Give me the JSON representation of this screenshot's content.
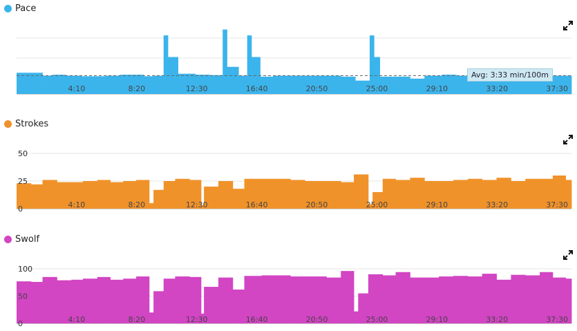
{
  "xticks": [
    "4:10",
    "8:20",
    "12:30",
    "16:40",
    "20:50",
    "25:00",
    "29:10",
    "33:20",
    "37:30"
  ],
  "xmax": 38.5,
  "panels": {
    "pace": {
      "label": "Pace",
      "color": "#3bb4ec",
      "avg_label": "Avg: 3:33 min/100m"
    },
    "strokes": {
      "label": "Strokes",
      "color": "#f0922a",
      "yticks": [
        "0",
        "25",
        "50"
      ]
    },
    "swolf": {
      "label": "Swolf",
      "color": "#d245c3",
      "yticks": [
        "0",
        "50",
        "100"
      ]
    }
  },
  "chart_data": [
    {
      "type": "area",
      "title": "Pace",
      "unit": "min/100m",
      "x_unit": "elapsed time (min:sec)",
      "avg": "3:33",
      "inverted_axis": true,
      "segments": [
        [
          0,
          1.8,
          3.4
        ],
        [
          1.8,
          2.5,
          3.55
        ],
        [
          2.5,
          3.4,
          3.5
        ],
        [
          3.4,
          4.5,
          3.55
        ],
        [
          4.5,
          6.2,
          3.58
        ],
        [
          6.2,
          7.2,
          3.55
        ],
        [
          7.2,
          8.8,
          3.5
        ],
        [
          8.8,
          9.5,
          3.58
        ],
        [
          9.5,
          10.2,
          3.55
        ],
        [
          10.2,
          10.5,
          1.5
        ],
        [
          10.5,
          11.2,
          2.6
        ],
        [
          11.2,
          12.4,
          3.45
        ],
        [
          12.4,
          13.4,
          3.5
        ],
        [
          13.4,
          14.3,
          3.52
        ],
        [
          14.3,
          14.6,
          1.2
        ],
        [
          14.6,
          15.4,
          3.1
        ],
        [
          15.4,
          16.0,
          3.55
        ],
        [
          16.0,
          16.3,
          1.5
        ],
        [
          16.3,
          16.9,
          2.6
        ],
        [
          16.9,
          17.8,
          3.6
        ],
        [
          17.8,
          19.0,
          3.55
        ],
        [
          19.0,
          20.5,
          3.55
        ],
        [
          20.5,
          22.5,
          3.55
        ],
        [
          22.5,
          23.5,
          3.6
        ],
        [
          23.5,
          24.5,
          3.8
        ],
        [
          24.5,
          24.8,
          1.5
        ],
        [
          24.8,
          25.2,
          2.6
        ],
        [
          25.2,
          26.3,
          3.6
        ],
        [
          26.3,
          27.3,
          3.6
        ],
        [
          27.3,
          28.3,
          3.7
        ],
        [
          28.3,
          29.5,
          3.55
        ],
        [
          29.5,
          30.5,
          3.5
        ],
        [
          30.5,
          32.0,
          3.55
        ],
        [
          32.0,
          34.0,
          3.55
        ],
        [
          34.0,
          34.8,
          3.5
        ],
        [
          34.8,
          35.5,
          3.3
        ],
        [
          35.5,
          37.0,
          3.5
        ],
        [
          37.0,
          38.5,
          3.55
        ]
      ]
    },
    {
      "type": "bar",
      "title": "Strokes",
      "ylim": [
        0,
        50
      ],
      "segments": [
        [
          0,
          1.0,
          23
        ],
        [
          1.0,
          1.8,
          22
        ],
        [
          1.8,
          2.8,
          26
        ],
        [
          2.8,
          3.8,
          24
        ],
        [
          3.8,
          4.6,
          24
        ],
        [
          4.6,
          5.6,
          25
        ],
        [
          5.6,
          6.5,
          26
        ],
        [
          6.5,
          7.4,
          24
        ],
        [
          7.4,
          8.3,
          25
        ],
        [
          8.3,
          9.2,
          26
        ],
        [
          9.2,
          9.5,
          5
        ],
        [
          9.5,
          10.2,
          17
        ],
        [
          10.2,
          11.0,
          25
        ],
        [
          11.0,
          12.0,
          27
        ],
        [
          12.0,
          12.8,
          26
        ],
        [
          12.8,
          13.0,
          3
        ],
        [
          13.0,
          14.0,
          20
        ],
        [
          14.0,
          15.0,
          25
        ],
        [
          15.0,
          15.8,
          18
        ],
        [
          15.8,
          17.0,
          27
        ],
        [
          17.0,
          19.0,
          27
        ],
        [
          19.0,
          20.0,
          26
        ],
        [
          20.0,
          21.5,
          25
        ],
        [
          21.5,
          22.5,
          25
        ],
        [
          22.5,
          23.4,
          24
        ],
        [
          23.4,
          24.4,
          31
        ],
        [
          24.4,
          24.7,
          4
        ],
        [
          24.7,
          25.4,
          15
        ],
        [
          25.4,
          26.3,
          27
        ],
        [
          26.3,
          27.3,
          26
        ],
        [
          27.3,
          28.3,
          28
        ],
        [
          28.3,
          29.3,
          25
        ],
        [
          29.3,
          30.3,
          25
        ],
        [
          30.3,
          31.3,
          26
        ],
        [
          31.3,
          32.3,
          27
        ],
        [
          32.3,
          33.3,
          26
        ],
        [
          33.3,
          34.3,
          28
        ],
        [
          34.3,
          35.3,
          25
        ],
        [
          35.3,
          36.3,
          27
        ],
        [
          36.3,
          37.2,
          27
        ],
        [
          37.2,
          38.1,
          30
        ],
        [
          38.1,
          38.5,
          26
        ]
      ]
    },
    {
      "type": "bar",
      "title": "Swolf",
      "ylim": [
        0,
        100
      ],
      "segments": [
        [
          0,
          1.0,
          77
        ],
        [
          1.0,
          1.8,
          76
        ],
        [
          1.8,
          2.8,
          85
        ],
        [
          2.8,
          3.8,
          79
        ],
        [
          3.8,
          4.6,
          80
        ],
        [
          4.6,
          5.6,
          82
        ],
        [
          5.6,
          6.5,
          85
        ],
        [
          6.5,
          7.4,
          80
        ],
        [
          7.4,
          8.3,
          82
        ],
        [
          8.3,
          9.2,
          86
        ],
        [
          9.2,
          9.5,
          20
        ],
        [
          9.5,
          10.2,
          59
        ],
        [
          10.2,
          11.0,
          82
        ],
        [
          11.0,
          12.0,
          86
        ],
        [
          12.0,
          12.8,
          85
        ],
        [
          12.8,
          13.0,
          18
        ],
        [
          13.0,
          14.0,
          67
        ],
        [
          14.0,
          15.0,
          84
        ],
        [
          15.0,
          15.8,
          62
        ],
        [
          15.8,
          17.0,
          87
        ],
        [
          17.0,
          19.0,
          88
        ],
        [
          19.0,
          20.0,
          86
        ],
        [
          20.0,
          21.5,
          86
        ],
        [
          21.5,
          22.5,
          84
        ],
        [
          22.5,
          23.4,
          96
        ],
        [
          23.4,
          23.7,
          22
        ],
        [
          23.7,
          24.4,
          55
        ],
        [
          24.4,
          25.4,
          90
        ],
        [
          25.4,
          26.3,
          88
        ],
        [
          26.3,
          27.3,
          94
        ],
        [
          27.3,
          28.3,
          84
        ],
        [
          28.3,
          29.3,
          84
        ],
        [
          29.3,
          30.3,
          86
        ],
        [
          30.3,
          31.3,
          87
        ],
        [
          31.3,
          32.3,
          86
        ],
        [
          32.3,
          33.3,
          91
        ],
        [
          33.3,
          34.3,
          80
        ],
        [
          34.3,
          35.3,
          89
        ],
        [
          35.3,
          36.3,
          88
        ],
        [
          36.3,
          37.2,
          94
        ],
        [
          37.2,
          38.1,
          84
        ],
        [
          38.1,
          38.5,
          82
        ]
      ]
    }
  ]
}
